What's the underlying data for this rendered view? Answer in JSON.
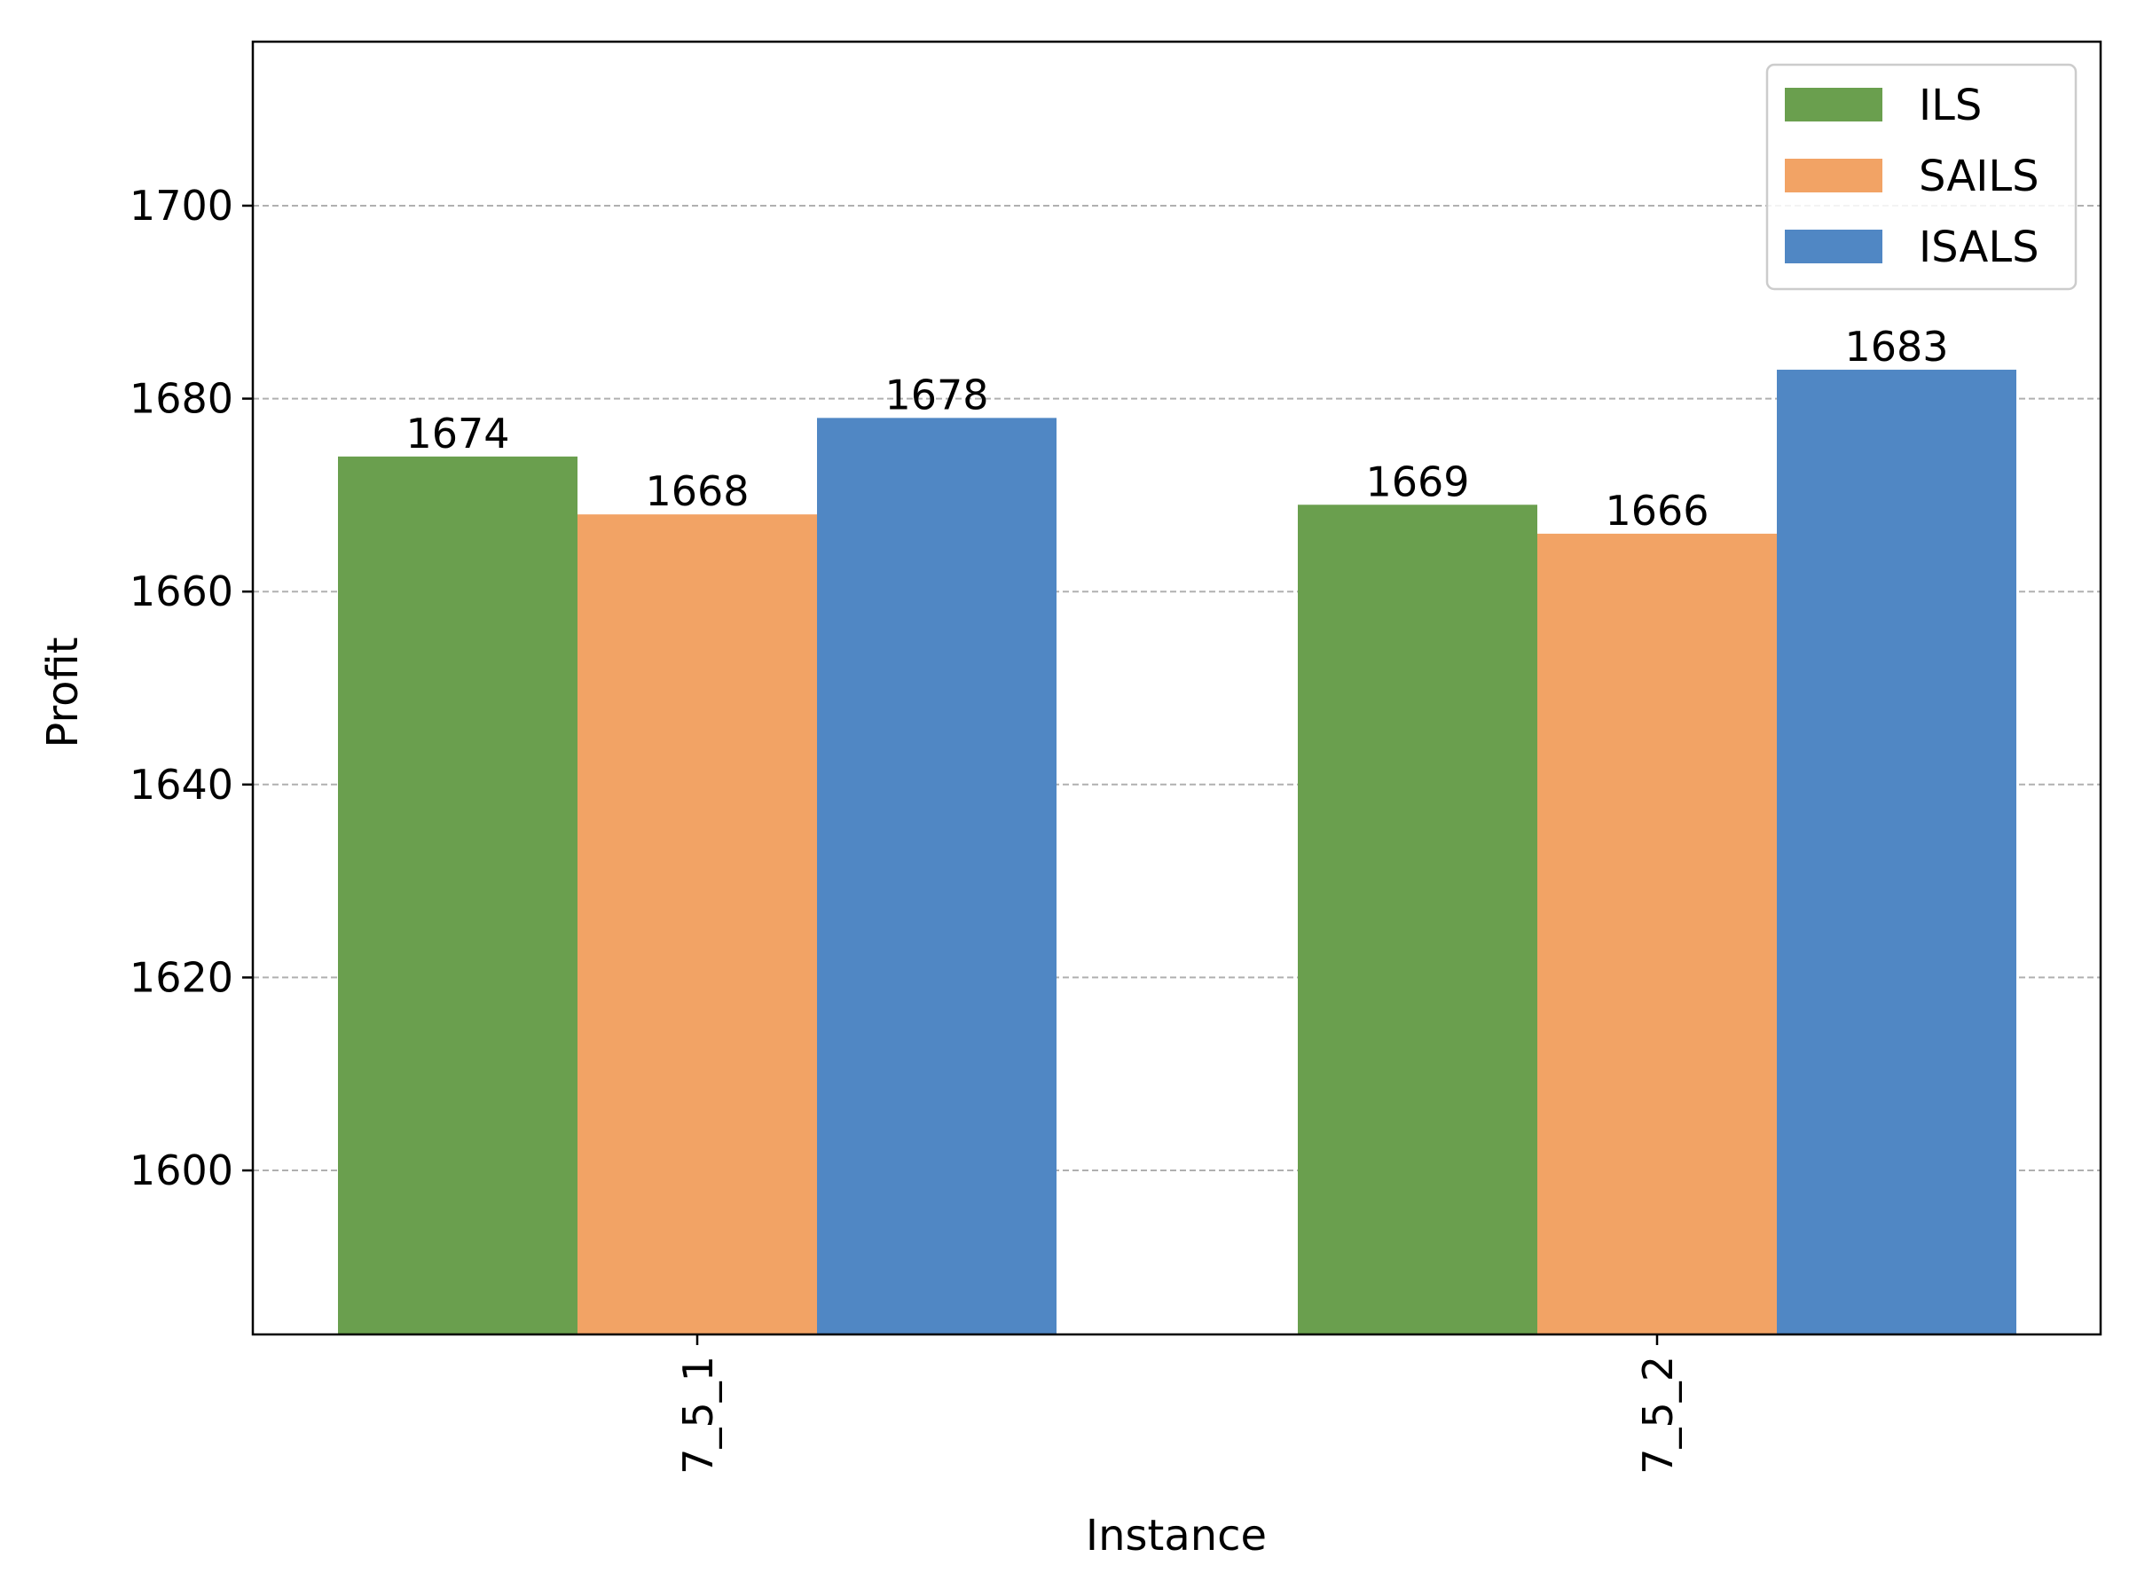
{
  "chart_data": {
    "type": "bar",
    "categories": [
      "7_5_1",
      "7_5_2"
    ],
    "series": [
      {
        "name": "ILS",
        "values": [
          1674,
          1669
        ],
        "color": "#6a9f4e"
      },
      {
        "name": "SAILS",
        "values": [
          1668,
          1666
        ],
        "color": "#f2a365"
      },
      {
        "name": "ISALS",
        "values": [
          1678,
          1683
        ],
        "color": "#5087c4"
      }
    ],
    "title": "",
    "xlabel": "Instance",
    "ylabel": "Profit",
    "ylim": [
      1583,
      1717
    ],
    "yticks": [
      1600,
      1620,
      1640,
      1660,
      1680,
      1700
    ],
    "grid": "y",
    "legend_position": "top-right",
    "data_labels": true,
    "x_tick_rotation": "vertical"
  }
}
